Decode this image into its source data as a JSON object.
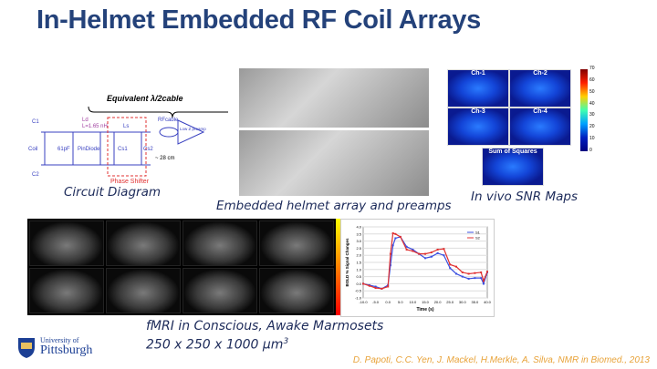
{
  "title": "In-Helmet Embedded RF Coil Arrays",
  "circuit": {
    "caption": "Circuit Diagram",
    "header": "Equivalent λ/2cable",
    "labels": [
      "C1",
      "C2",
      "Coil",
      "Ld",
      "L=1.65 nH",
      "61pF",
      "PinDiode",
      "Ls",
      "Cs1",
      "Cs2",
      "RFcable",
      "Low Z preamp",
      "~ 28 cm",
      "Phase Shifter"
    ]
  },
  "helmet": {
    "caption": "Embedded helmet array and preamps"
  },
  "snr": {
    "caption": "In vivo SNR Maps",
    "channels": [
      "Ch-1",
      "Ch-2",
      "Ch-3",
      "Ch-4"
    ],
    "sum_label": "Sum of Squares",
    "colorbar_ticks": [
      "70",
      "60",
      "50",
      "40",
      "30",
      "20",
      "10",
      "0"
    ]
  },
  "fmri": {
    "caption_line1": "fMRI in Conscious, Awake Marmosets",
    "caption_line2": "250 x 250 x 1000 µm",
    "caption_sup": "3"
  },
  "logo": {
    "line1": "University of",
    "line2": "Pittsburgh"
  },
  "citation": "D. Papoti, C.C. Yen, J. Mackel, H.Merkle, A. Silva, NMR in Biomed., 2013",
  "chart_data": {
    "type": "line",
    "xlabel": "Time (s)",
    "ylabel": "BOLD % Signal Changes",
    "xlim": [
      -10,
      40
    ],
    "ylim": [
      -1,
      4
    ],
    "xticks": [
      "-10.0",
      "-5.0",
      "0.0",
      "5.0",
      "10.0",
      "15.0",
      "20.0",
      "25.0",
      "30.0",
      "35.0",
      "40.0"
    ],
    "yticks": [
      "-1.0",
      "-0.5",
      "0.0",
      "0.5",
      "1.0",
      "1.5",
      "2.0",
      "2.5",
      "3.0",
      "3.5",
      "4.0"
    ],
    "x": [
      -10,
      -7.5,
      -5,
      -2.5,
      0,
      1,
      2,
      3,
      5,
      7.5,
      10,
      12.5,
      15,
      17.5,
      20,
      22.5,
      25,
      27.5,
      30,
      32.5,
      35,
      37.5,
      38.5,
      40
    ],
    "series": [
      {
        "name": "S1",
        "color": "#3a4fe0",
        "values": [
          0,
          -0.1,
          -0.2,
          -0.35,
          -0.1,
          1.3,
          2.7,
          3.2,
          3.3,
          2.6,
          2.4,
          2.1,
          1.8,
          1.9,
          2.15,
          2.0,
          1.1,
          0.7,
          0.5,
          0.35,
          0.4,
          0.4,
          0.0,
          0.8
        ]
      },
      {
        "name": "S2",
        "color": "#e03030",
        "values": [
          0,
          -0.15,
          -0.3,
          -0.35,
          -0.2,
          2.1,
          3.55,
          3.5,
          3.3,
          2.4,
          2.3,
          2.1,
          2.1,
          2.2,
          2.4,
          2.45,
          1.35,
          1.2,
          0.8,
          0.7,
          0.75,
          0.8,
          0.2,
          0.85
        ]
      }
    ],
    "legend": "top-right"
  }
}
